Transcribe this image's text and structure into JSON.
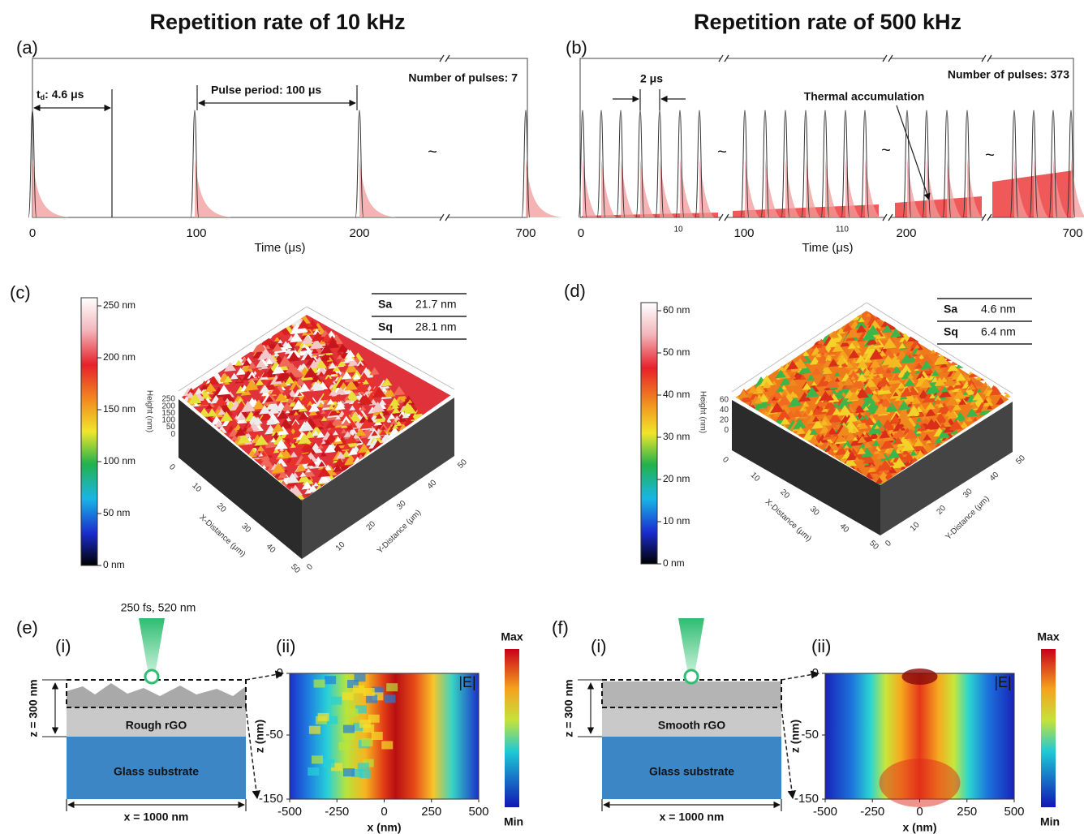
{
  "panel_a": {
    "label": "(a)",
    "title": "Repetition rate of 10 kHz",
    "td": {
      "symbol": "t",
      "subscript": "d",
      "text": ": 4.6 μs"
    },
    "pulse_period": "Pulse period: 100 μs",
    "pulses": "Number of pulses: 7",
    "break": "~",
    "x_ticks": [
      "0",
      "100",
      "200",
      "700"
    ],
    "x_label": "Time (μs)"
  },
  "panel_b": {
    "label": "(b)",
    "title": "Repetition rate of 500 kHz",
    "spacing": "2 μs",
    "pulses": "Number of pulses: 373",
    "annotation": "Thermal accumulation",
    "break": "~",
    "x_ticks": [
      "0",
      "10",
      "100",
      "110",
      "200",
      "700"
    ],
    "x_label": "Time (μs)"
  },
  "panel_c": {
    "label": "(c)",
    "colorbar": [
      "250 nm",
      "200 nm",
      "150 nm",
      "100 nm",
      "50 nm",
      "0 nm"
    ],
    "table": [
      [
        "Sa",
        "21.7 nm"
      ],
      [
        "Sq",
        "28.1 nm"
      ]
    ],
    "x_axis": "X-Distance (μm)",
    "y_axis": "Y-Distance (μm)",
    "z_axis": "Height (nm)",
    "x_ticks": [
      "0",
      "10",
      "20",
      "30",
      "40",
      "50"
    ],
    "y_ticks": [
      "0",
      "10",
      "20",
      "30",
      "40",
      "50"
    ],
    "z_ticks": [
      "250",
      "200",
      "150",
      "100",
      "50",
      "0"
    ]
  },
  "panel_d": {
    "label": "(d)",
    "colorbar": [
      "60 nm",
      "50 nm",
      "40 nm",
      "30 nm",
      "20 nm",
      "10 nm",
      "0 nm"
    ],
    "table": [
      [
        "Sa",
        "4.6 nm"
      ],
      [
        "Sq",
        "6.4 nm"
      ]
    ],
    "x_axis": "X-Distance (μm)",
    "y_axis": "Y-Distance (μm)",
    "z_axis": "Height (nm)",
    "x_ticks": [
      "0",
      "10",
      "20",
      "30",
      "40",
      "50"
    ],
    "y_ticks": [
      "0",
      "10",
      "20",
      "30",
      "40",
      "50"
    ],
    "z_ticks": [
      "60",
      "40",
      "20",
      "0"
    ]
  },
  "panel_e": {
    "label": "(e)",
    "sub_i": "(i)",
    "sub_ii": "(ii)",
    "laser": "250 fs, 520 nm",
    "depth": "z = 300 nm",
    "layer": "Rough rGO",
    "substrate": "Glass substrate",
    "width": "x = 1000 nm",
    "field": "|E|",
    "z_ticks": [
      "0",
      "-50",
      "-150"
    ],
    "x_ticks": [
      "-500",
      "-250",
      "0",
      "250",
      "500"
    ],
    "z_label": "z (nm)",
    "x_label": "x (nm)",
    "max": "Max",
    "min": "Min"
  },
  "panel_f": {
    "label": "(f)",
    "sub_i": "(i)",
    "sub_ii": "(ii)",
    "depth": "z = 300 nm",
    "layer": "Smooth rGO",
    "substrate": "Glass substrate",
    "width": "x = 1000 nm",
    "field": "|E|",
    "z_ticks": [
      "0",
      "-50",
      "-150"
    ],
    "x_ticks": [
      "-500",
      "-250",
      "0",
      "250",
      "500"
    ],
    "z_label": "z (nm)",
    "x_label": "x (nm)",
    "max": "Max",
    "min": "Min"
  }
}
